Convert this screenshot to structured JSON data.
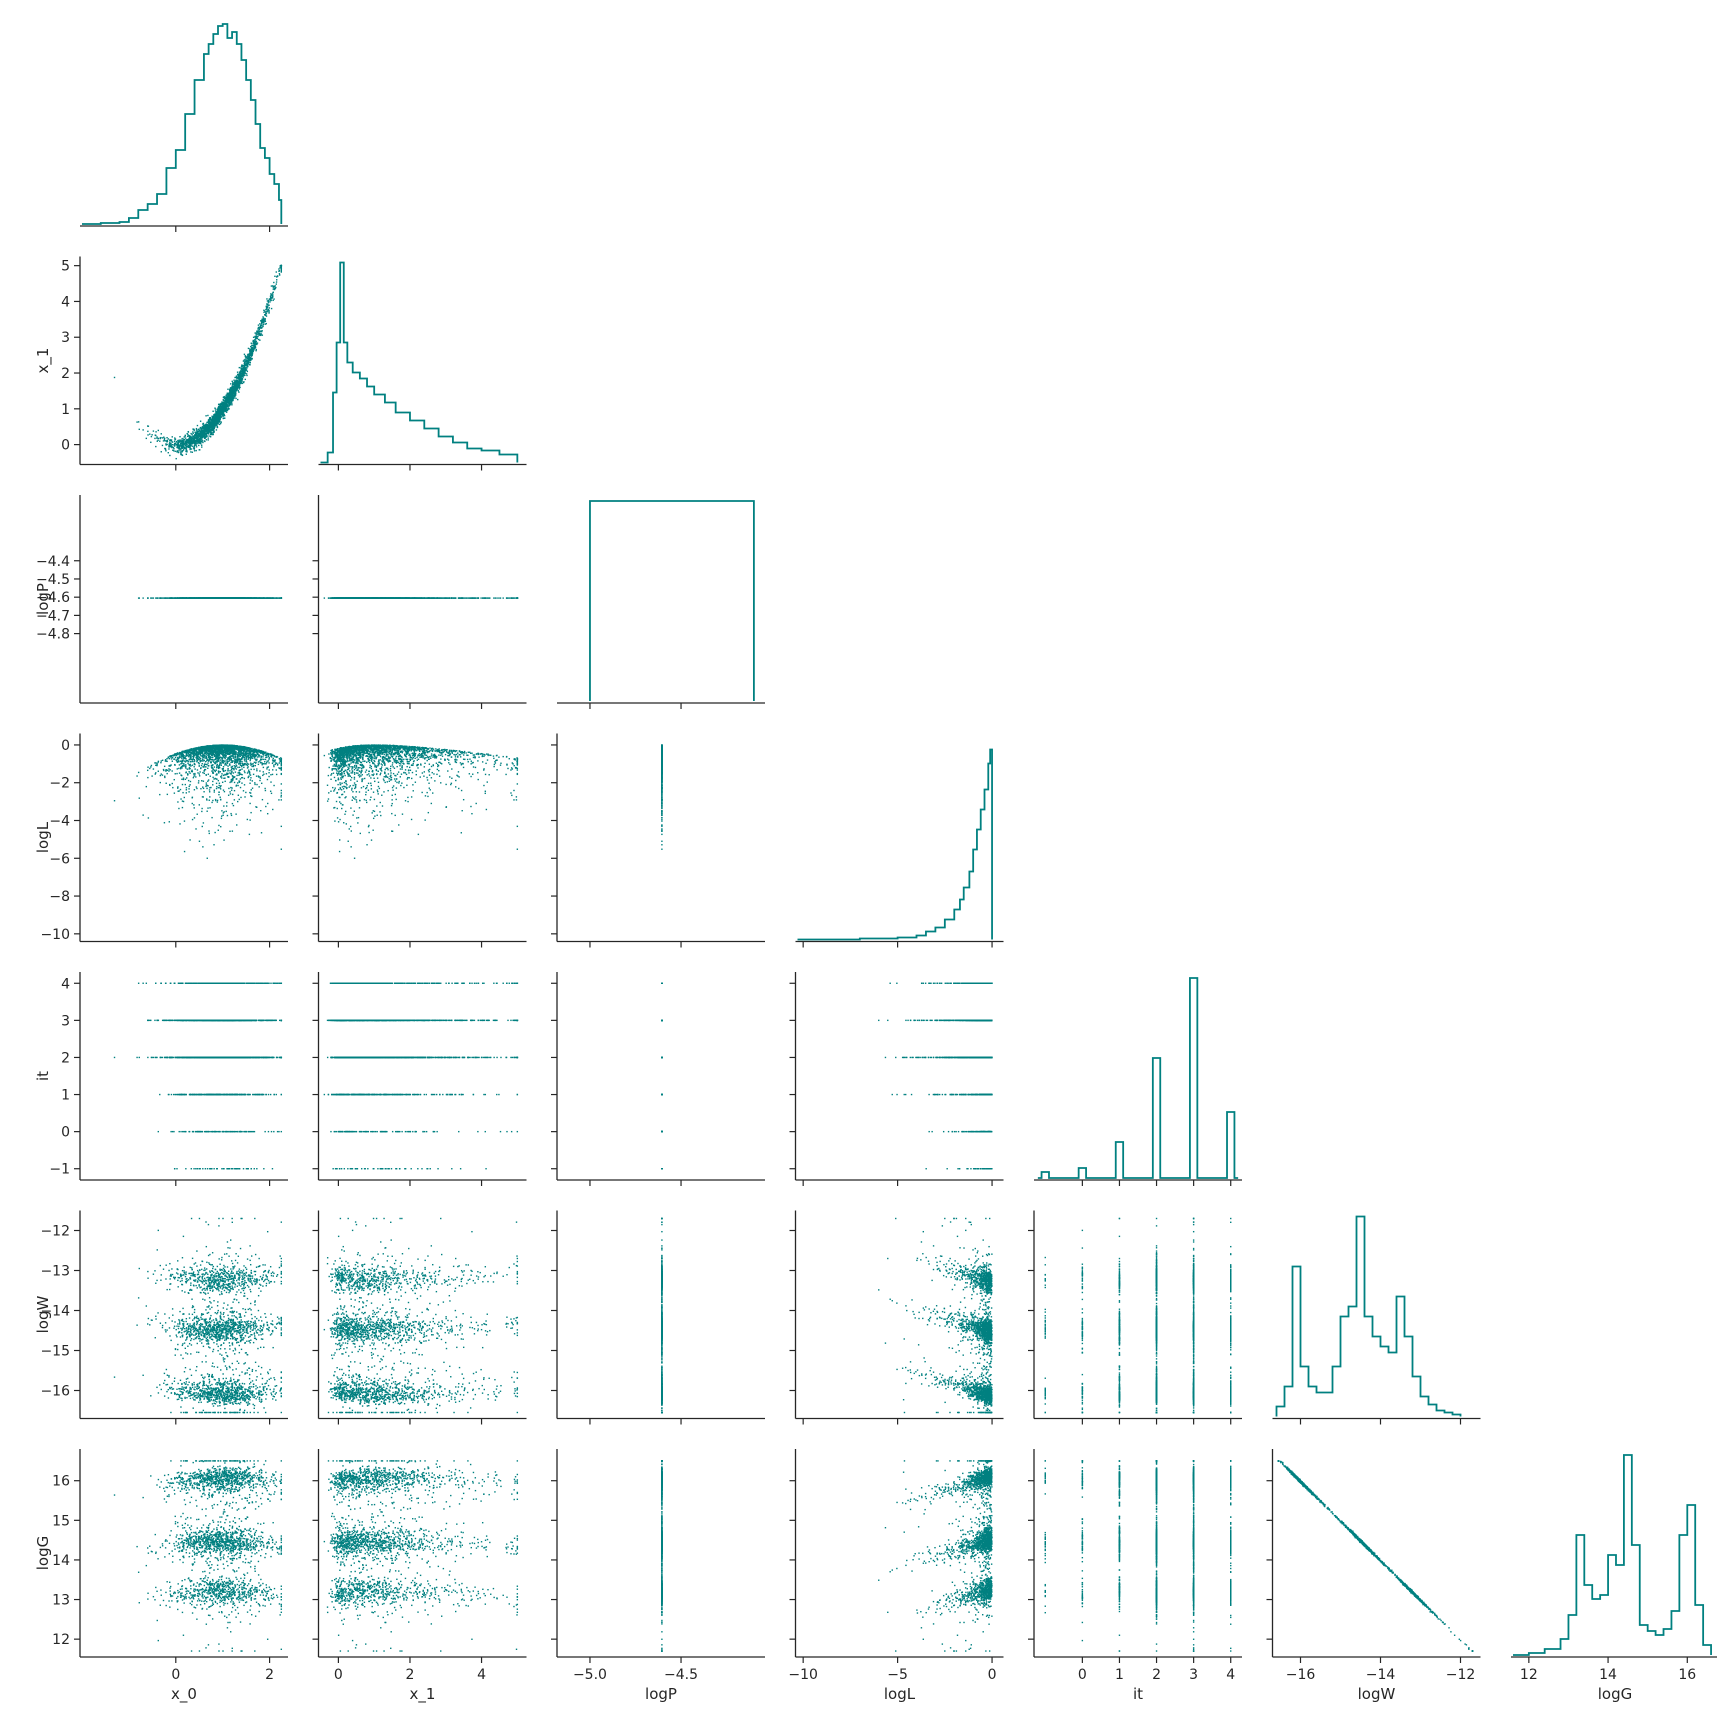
{
  "chart_data": {
    "type": "scatter",
    "title": "",
    "color": "#008080",
    "axis_color": "#262626",
    "variables": [
      "x_0",
      "x_1",
      "logP",
      "logL",
      "it",
      "logW",
      "logG"
    ],
    "grid": false,
    "layout": "corner (lower triangle), 1-D step histograms on the diagonal",
    "ranges": {
      "x_0": [
        -2.0,
        2.35
      ],
      "x_1": [
        -0.5,
        5.2
      ],
      "logP": [
        -5.17,
        -4.05
      ],
      "logL": [
        -10.3,
        0.5
      ],
      "it": [
        -1.25,
        4.25
      ],
      "logW": [
        -16.65,
        -11.55
      ],
      "logG": [
        11.6,
        16.75
      ]
    },
    "ticks": {
      "x_0": [
        0,
        2
      ],
      "x_1": [
        0,
        2,
        4
      ],
      "logP": [
        -5.0,
        -4.5
      ],
      "logL": [
        -10,
        -5,
        0
      ],
      "it": [
        0,
        1,
        2,
        3,
        4
      ],
      "logW": [
        -16,
        -14,
        -12
      ],
      "logG": [
        12,
        14,
        16
      ]
    },
    "y_ticks": {
      "x_1": [
        0,
        1,
        2,
        3,
        4,
        5
      ],
      "logP": [
        -4.4,
        -4.5,
        -4.6,
        -4.7,
        -4.8
      ],
      "logL": [
        0,
        -2,
        -4,
        -6,
        -8,
        -10
      ],
      "it": [
        4,
        3,
        2,
        1,
        0,
        -1
      ],
      "logW": [
        -12,
        -13,
        -14,
        -15,
        -16
      ],
      "logG": [
        16,
        15,
        14,
        13,
        12
      ]
    },
    "tick_labels": {
      "x_0": [
        "0",
        "2"
      ],
      "x_1": [
        "0",
        "2",
        "4"
      ],
      "logP": [
        "−5.0",
        "−4.5"
      ],
      "logL": [
        "−10",
        "−5",
        "0"
      ],
      "it": [
        "0",
        "1",
        "2",
        "3",
        "4"
      ],
      "logW": [
        "−16",
        "−14",
        "−12"
      ],
      "logG": [
        "12",
        "14",
        "16"
      ]
    },
    "y_tick_labels": {
      "x_1": [
        "0",
        "1",
        "2",
        "3",
        "4",
        "5"
      ],
      "logP": [
        "−4.4",
        "−4.5",
        "−4.6",
        "−4.7",
        "−4.8"
      ],
      "logL": [
        "0",
        "−2",
        "−4",
        "−6",
        "−8",
        "−10"
      ],
      "it": [
        "4",
        "3",
        "2",
        "1",
        "0",
        "−1"
      ],
      "logW": [
        "−12",
        "−13",
        "−14",
        "−15",
        "−16"
      ],
      "logG": [
        "16",
        "15",
        "14",
        "13",
        "12"
      ]
    },
    "histograms": {
      "x_0": {
        "x": [
          -2.0,
          -1.6,
          -1.2,
          -1.0,
          -0.8,
          -0.6,
          -0.4,
          -0.2,
          0.0,
          0.2,
          0.4,
          0.6,
          0.7,
          0.8,
          0.9,
          1.0,
          1.1,
          1.2,
          1.3,
          1.4,
          1.5,
          1.6,
          1.7,
          1.8,
          1.9,
          2.0,
          2.1,
          2.2,
          2.25
        ],
        "y": [
          0.0,
          0.005,
          0.01,
          0.03,
          0.07,
          0.1,
          0.15,
          0.28,
          0.37,
          0.55,
          0.72,
          0.85,
          0.9,
          0.95,
          0.99,
          1.0,
          0.93,
          0.96,
          0.9,
          0.82,
          0.72,
          0.62,
          0.5,
          0.38,
          0.33,
          0.25,
          0.2,
          0.12,
          0.0
        ]
      },
      "x_1": {
        "x": [
          -0.5,
          -0.3,
          -0.15,
          -0.05,
          0.05,
          0.15,
          0.25,
          0.4,
          0.6,
          0.8,
          1.0,
          1.3,
          1.6,
          2.0,
          2.4,
          2.8,
          3.2,
          3.6,
          4.0,
          4.5,
          5.0
        ],
        "y": [
          0.0,
          0.05,
          0.35,
          0.6,
          1.0,
          0.6,
          0.5,
          0.45,
          0.42,
          0.38,
          0.34,
          0.3,
          0.25,
          0.21,
          0.17,
          0.13,
          0.1,
          0.07,
          0.06,
          0.04,
          0.0
        ]
      },
      "logP": {
        "x": [
          -5.0,
          -4.9,
          -4.8,
          -4.7,
          -4.6,
          -4.5,
          -4.4,
          -4.3,
          -4.2,
          -4.1
        ],
        "y": [
          1.0,
          1.0,
          1.0,
          1.0,
          1.0,
          1.0,
          1.0,
          1.0,
          1.0,
          1.0
        ]
      },
      "logL": {
        "x": [
          -10.3,
          -7.0,
          -5.0,
          -4.0,
          -3.5,
          -3.0,
          -2.5,
          -2.0,
          -1.7,
          -1.5,
          -1.2,
          -1.0,
          -0.8,
          -0.6,
          -0.4,
          -0.2,
          -0.1,
          0.0
        ],
        "y": [
          0.0,
          0.005,
          0.01,
          0.02,
          0.04,
          0.06,
          0.1,
          0.15,
          0.2,
          0.26,
          0.34,
          0.45,
          0.55,
          0.65,
          0.75,
          0.88,
          0.95,
          1.0
        ]
      },
      "it": {
        "x": [
          -1,
          0,
          1,
          2,
          3,
          4
        ],
        "y": [
          0.03,
          0.05,
          0.18,
          0.6,
          1.0,
          0.33
        ]
      },
      "logW": {
        "x": [
          -16.6,
          -16.4,
          -16.2,
          -16.0,
          -15.8,
          -15.6,
          -15.4,
          -15.2,
          -15.0,
          -14.8,
          -14.6,
          -14.4,
          -14.2,
          -14.0,
          -13.8,
          -13.6,
          -13.4,
          -13.2,
          -13.0,
          -12.8,
          -12.6,
          -12.4,
          -12.2,
          -12.0
        ],
        "y": [
          0.05,
          0.15,
          0.75,
          0.25,
          0.15,
          0.12,
          0.12,
          0.25,
          0.5,
          0.55,
          1.0,
          0.5,
          0.4,
          0.35,
          0.32,
          0.6,
          0.4,
          0.2,
          0.1,
          0.06,
          0.03,
          0.02,
          0.01,
          0.0
        ]
      },
      "logG": {
        "x": [
          11.6,
          12.0,
          12.4,
          12.8,
          13.0,
          13.2,
          13.4,
          13.6,
          13.8,
          14.0,
          14.2,
          14.4,
          14.6,
          14.8,
          15.0,
          15.2,
          15.4,
          15.6,
          15.8,
          16.0,
          16.2,
          16.4,
          16.6
        ],
        "y": [
          0.0,
          0.01,
          0.03,
          0.08,
          0.2,
          0.6,
          0.35,
          0.28,
          0.3,
          0.5,
          0.45,
          1.0,
          0.55,
          0.15,
          0.12,
          0.1,
          0.13,
          0.22,
          0.6,
          0.75,
          0.25,
          0.05,
          0.0
        ]
      }
    }
  }
}
